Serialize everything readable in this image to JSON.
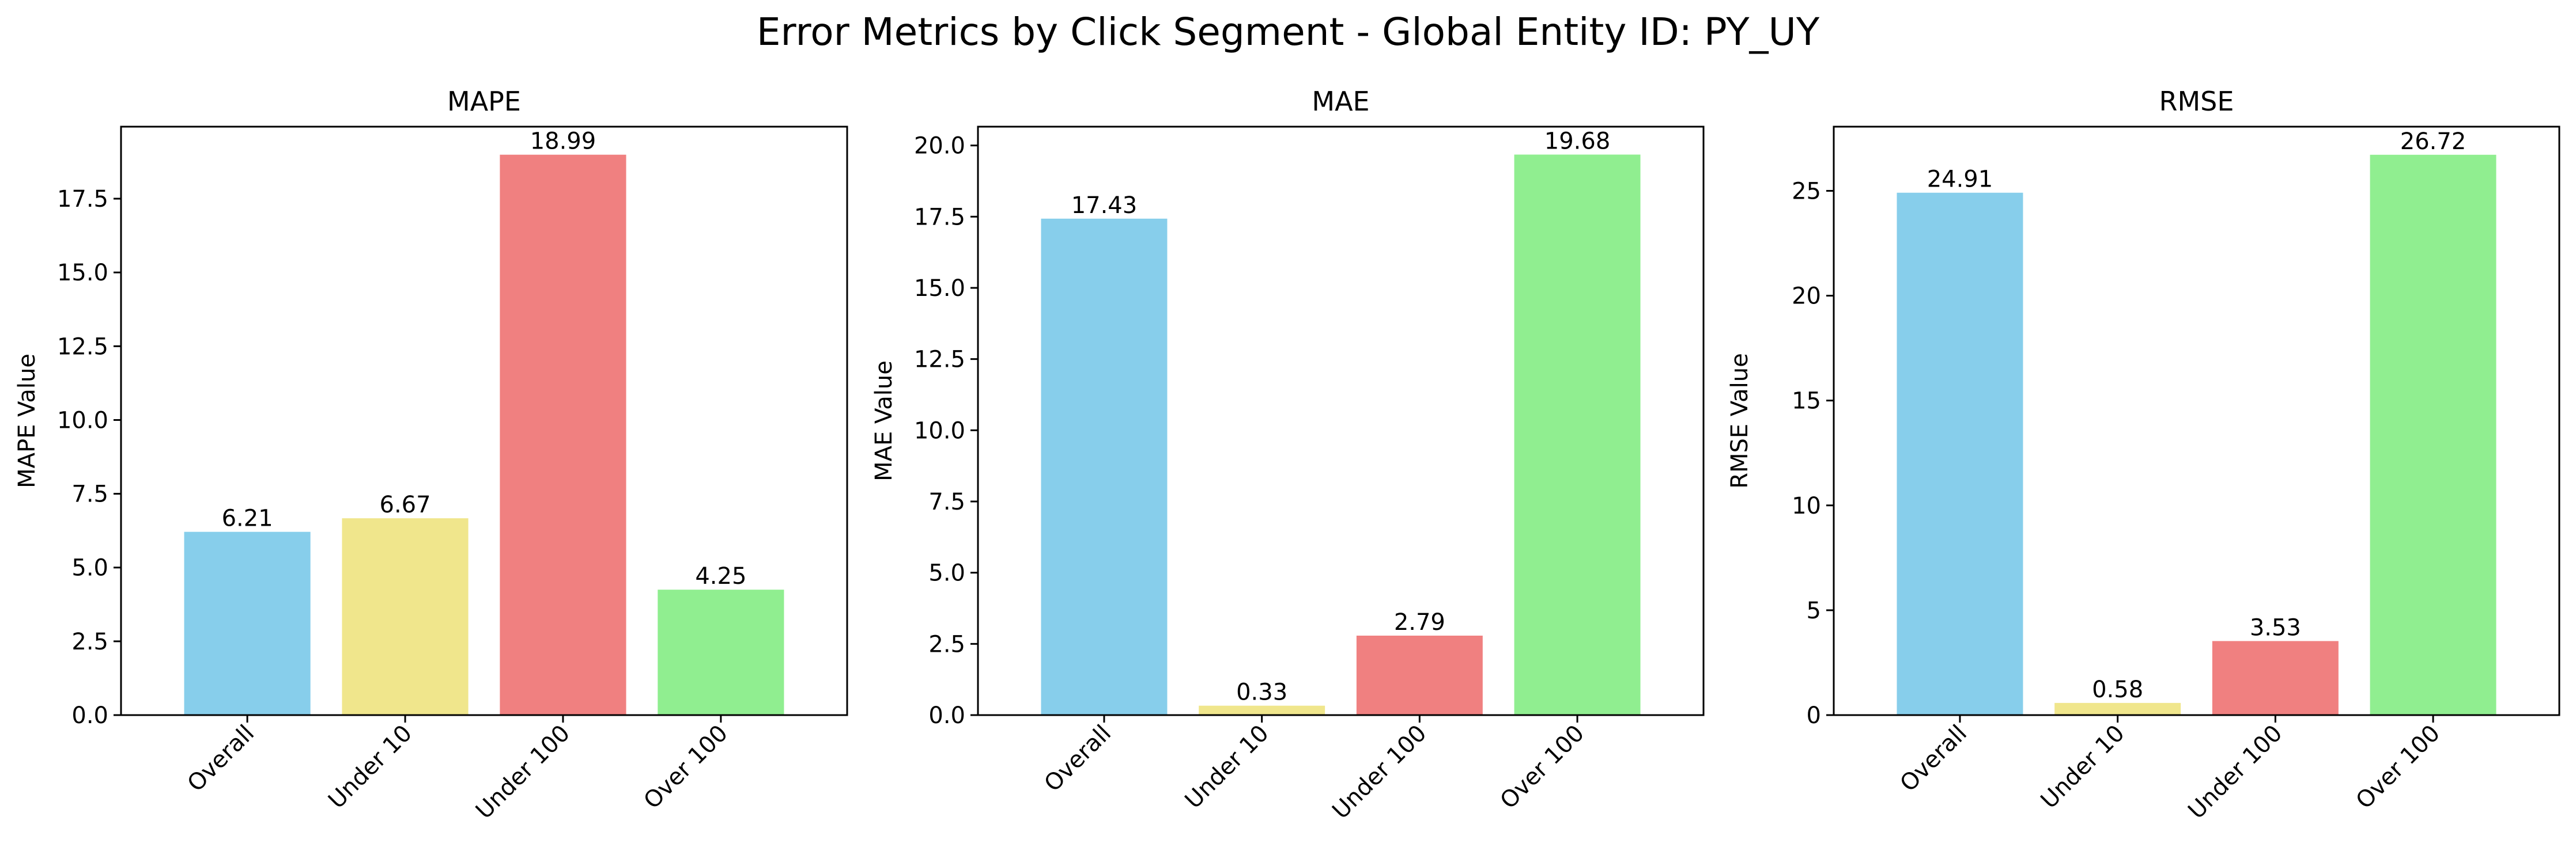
{
  "figure_title": "Error Metrics by Click Segment - Global Entity ID: PY_UY",
  "colors": {
    "Overall": "#87CEEB",
    "Under 10": "#F0E68C",
    "Under 100": "#F08080",
    "Over 100": "#90EE90"
  },
  "chart_data": [
    {
      "type": "bar",
      "title": "MAPE",
      "xlabel": "",
      "ylabel": "MAPE Value",
      "categories": [
        "Overall",
        "Under 10",
        "Under 100",
        "Over 100"
      ],
      "values": [
        6.21,
        6.67,
        18.99,
        4.25
      ],
      "value_labels": [
        "6.21",
        "6.67",
        "18.99",
        "4.25"
      ],
      "ylim": [
        0,
        19.94
      ],
      "yticks": [
        0,
        2.5,
        5,
        7.5,
        10,
        12.5,
        15,
        17.5
      ],
      "ytick_labels": [
        "0.0",
        "2.5",
        "5.0",
        "7.5",
        "10.0",
        "12.5",
        "15.0",
        "17.5"
      ],
      "grid": false,
      "legend": "none"
    },
    {
      "type": "bar",
      "title": "MAE",
      "xlabel": "",
      "ylabel": "MAE Value",
      "categories": [
        "Overall",
        "Under 10",
        "Under 100",
        "Over 100"
      ],
      "values": [
        17.43,
        0.33,
        2.79,
        19.68
      ],
      "value_labels": [
        "17.43",
        "0.33",
        "2.79",
        "19.68"
      ],
      "ylim": [
        0,
        20.66
      ],
      "yticks": [
        0,
        2.5,
        5,
        7.5,
        10,
        12.5,
        15,
        17.5,
        20
      ],
      "ytick_labels": [
        "0.0",
        "2.5",
        "5.0",
        "7.5",
        "10.0",
        "12.5",
        "15.0",
        "17.5",
        "20.0"
      ],
      "grid": false,
      "legend": "none"
    },
    {
      "type": "bar",
      "title": "RMSE",
      "xlabel": "",
      "ylabel": "RMSE Value",
      "categories": [
        "Overall",
        "Under 10",
        "Under 100",
        "Over 100"
      ],
      "values": [
        24.91,
        0.58,
        3.53,
        26.72
      ],
      "value_labels": [
        "24.91",
        "0.58",
        "3.53",
        "26.72"
      ],
      "ylim": [
        0,
        28.06
      ],
      "yticks": [
        0,
        5,
        10,
        15,
        20,
        25
      ],
      "ytick_labels": [
        "0",
        "5",
        "10",
        "15",
        "20",
        "25"
      ],
      "grid": false,
      "legend": "none"
    }
  ]
}
